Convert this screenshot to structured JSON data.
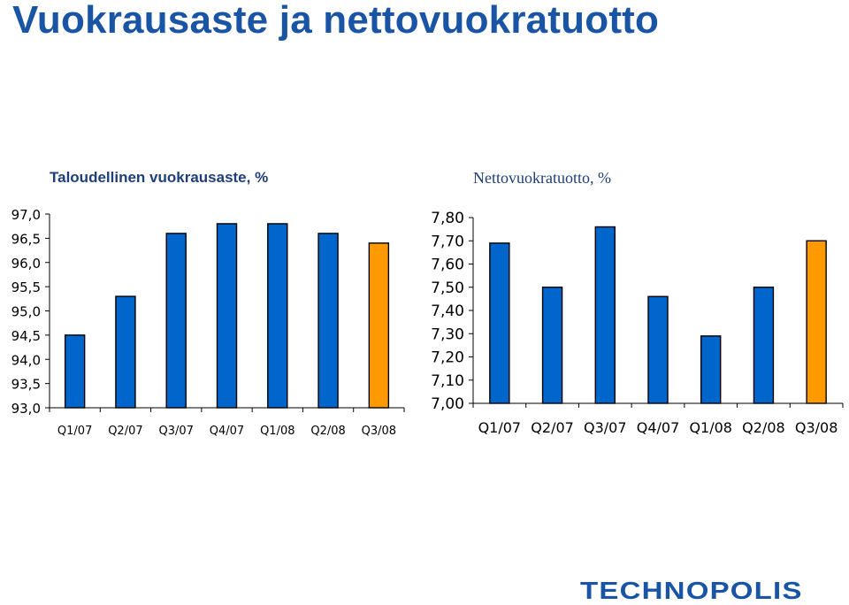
{
  "title": "Vuokrausaste ja nettovuokratuotto",
  "logo_text": "TECHNOPOLIS",
  "colors": {
    "bar": "#0066cc",
    "highlight": "#ff9900",
    "title": "#1a55a5"
  },
  "chart_data": [
    {
      "type": "bar",
      "title": "Taloudellinen vuokrausaste, %",
      "categories": [
        "Q1/07",
        "Q2/07",
        "Q3/07",
        "Q4/07",
        "Q1/08",
        "Q2/08",
        "Q3/08"
      ],
      "values": [
        94.5,
        95.3,
        96.6,
        96.8,
        96.8,
        96.6,
        96.4
      ],
      "highlight_index": 6,
      "ylim": [
        93.0,
        97.0
      ],
      "yticks": [
        "93,0",
        "93,5",
        "94,0",
        "94,5",
        "95,0",
        "95,5",
        "96,0",
        "96,5",
        "97,0"
      ],
      "grid": false,
      "xlabel": "",
      "ylabel": ""
    },
    {
      "type": "bar",
      "title": "Nettovuokratuotto, %",
      "categories": [
        "Q1/07",
        "Q2/07",
        "Q3/07",
        "Q4/07",
        "Q1/08",
        "Q2/08",
        "Q3/08"
      ],
      "values": [
        7.69,
        7.5,
        7.76,
        7.46,
        7.29,
        7.5,
        7.7
      ],
      "highlight_index": 6,
      "ylim": [
        7.0,
        7.8
      ],
      "yticks": [
        "7,00",
        "7,10",
        "7,20",
        "7,30",
        "7,40",
        "7,50",
        "7,60",
        "7,70",
        "7,80"
      ],
      "grid": false,
      "xlabel": "",
      "ylabel": ""
    }
  ]
}
